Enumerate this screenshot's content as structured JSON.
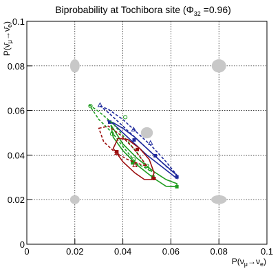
{
  "chart_data": {
    "type": "line",
    "title": {
      "main": "Biprobability at Tochibora site (",
      "phi": "Φ",
      "phi_sub": "32",
      "phi_value": " =0.96)"
    },
    "xlabel": {
      "base": "P(ν",
      "sub1": "μ",
      "arrow": "→ν",
      "sub2": "e",
      "close": ")"
    },
    "ylabel": {
      "base": "P(ν̄",
      "sub1": "μ",
      "arrow": "→ν̄",
      "sub2": "e",
      "close": ")"
    },
    "xlim": [
      0,
      0.1
    ],
    "ylim": [
      0,
      0.1
    ],
    "x_ticks": [
      "0",
      "0.02",
      "0.04",
      "0.06",
      "0.08",
      "0.1"
    ],
    "y_ticks": [
      "0",
      "0.02",
      "0.04",
      "0.06",
      "0.08",
      "0.1"
    ],
    "grid": true,
    "colors": {
      "blue": "#1f2a9c",
      "green": "#1f9c1f",
      "red": "#9c1010",
      "gray": "#c8c8c8"
    },
    "gray_markers": [
      {
        "x": 0.02,
        "y": 0.08,
        "rx": 0.002,
        "ry": 0.003
      },
      {
        "x": 0.08,
        "y": 0.08,
        "rx": 0.003,
        "ry": 0.003
      },
      {
        "x": 0.05,
        "y": 0.05,
        "rx": 0.0025,
        "ry": 0.0025
      },
      {
        "x": 0.02,
        "y": 0.02,
        "rx": 0.002,
        "ry": 0.002
      },
      {
        "x": 0.08,
        "y": 0.02,
        "rx": 0.0032,
        "ry": 0.002
      }
    ],
    "series": [
      {
        "color": "blue",
        "dash": false,
        "marker": "filled-square",
        "points": [
          [
            0.0335,
            0.0555
          ],
          [
            0.036,
            0.0545
          ],
          [
            0.04,
            0.052
          ],
          [
            0.045,
            0.048
          ],
          [
            0.05,
            0.043
          ],
          [
            0.056,
            0.037
          ],
          [
            0.0625,
            0.031
          ],
          [
            0.0625,
            0.0295
          ],
          [
            0.056,
            0.035
          ],
          [
            0.05,
            0.04
          ],
          [
            0.045,
            0.045
          ],
          [
            0.04,
            0.05
          ],
          [
            0.036,
            0.054
          ],
          [
            0.0335,
            0.0555
          ]
        ],
        "markers": [
          [
            0.0625,
            0.0302
          ],
          [
            0.0535,
            0.0397
          ],
          [
            0.0447,
            0.0468
          ],
          [
            0.0345,
            0.0548
          ]
        ]
      },
      {
        "color": "blue",
        "dash": true,
        "marker": "open-triangle",
        "points": [
          [
            0.0305,
            0.062
          ],
          [
            0.034,
            0.0605
          ],
          [
            0.04,
            0.056
          ],
          [
            0.046,
            0.05
          ],
          [
            0.052,
            0.044
          ],
          [
            0.058,
            0.037
          ],
          [
            0.0625,
            0.031
          ],
          [
            0.058,
            0.035
          ],
          [
            0.052,
            0.041
          ],
          [
            0.046,
            0.047
          ],
          [
            0.04,
            0.053
          ],
          [
            0.034,
            0.059
          ],
          [
            0.0305,
            0.062
          ]
        ],
        "markers": [
          [
            0.0305,
            0.0625
          ],
          [
            0.0445,
            0.0515
          ],
          [
            0.0515,
            0.0455
          ]
        ]
      },
      {
        "color": "green",
        "dash": false,
        "marker": "filled-square",
        "points": [
          [
            0.035,
            0.0535
          ],
          [
            0.036,
            0.048
          ],
          [
            0.04,
            0.042
          ],
          [
            0.046,
            0.0355
          ],
          [
            0.053,
            0.0295
          ],
          [
            0.058,
            0.026
          ],
          [
            0.0625,
            0.0258
          ],
          [
            0.0625,
            0.0272
          ],
          [
            0.058,
            0.029
          ],
          [
            0.053,
            0.0325
          ],
          [
            0.046,
            0.0385
          ],
          [
            0.04,
            0.045
          ],
          [
            0.0365,
            0.051
          ],
          [
            0.035,
            0.0535
          ]
        ],
        "markers": [
          [
            0.0625,
            0.0258
          ],
          [
            0.0525,
            0.0302
          ],
          [
            0.044,
            0.0365
          ]
        ]
      },
      {
        "color": "green",
        "dash": true,
        "marker": "open-circle",
        "points": [
          [
            0.026,
            0.0625
          ],
          [
            0.03,
            0.0595
          ],
          [
            0.036,
            0.054
          ],
          [
            0.041,
            0.0475
          ],
          [
            0.046,
            0.041
          ],
          [
            0.05,
            0.035
          ],
          [
            0.052,
            0.0325
          ],
          [
            0.049,
            0.0345
          ],
          [
            0.046,
            0.036
          ],
          [
            0.041,
            0.0425
          ],
          [
            0.036,
            0.0495
          ],
          [
            0.03,
            0.056
          ],
          [
            0.026,
            0.0625
          ]
        ],
        "markers": [
          [
            0.0265,
            0.062
          ],
          [
            0.0355,
            0.0495
          ],
          [
            0.041,
            0.057
          ],
          [
            0.0445,
            0.038
          ],
          [
            0.05,
            0.0352
          ]
        ]
      },
      {
        "color": "red",
        "dash": false,
        "marker": "filled-square",
        "points": [
          [
            0.036,
            0.043
          ],
          [
            0.038,
            0.0475
          ],
          [
            0.042,
            0.047
          ],
          [
            0.047,
            0.043
          ],
          [
            0.051,
            0.038
          ],
          [
            0.053,
            0.032
          ],
          [
            0.052,
            0.029
          ],
          [
            0.049,
            0.029
          ],
          [
            0.045,
            0.032
          ],
          [
            0.04,
            0.037
          ],
          [
            0.036,
            0.043
          ]
        ],
        "markers": [
          [
            0.053,
            0.0295
          ],
          [
            0.046,
            0.0425
          ],
          [
            0.0375,
            0.0415
          ]
        ]
      },
      {
        "color": "red",
        "dash": true,
        "marker": "open-triangle",
        "points": [
          [
            0.03,
            0.052
          ],
          [
            0.034,
            0.053
          ],
          [
            0.039,
            0.049
          ],
          [
            0.044,
            0.0435
          ],
          [
            0.048,
            0.038
          ],
          [
            0.05,
            0.035
          ],
          [
            0.047,
            0.036
          ],
          [
            0.042,
            0.038
          ],
          [
            0.037,
            0.041
          ],
          [
            0.032,
            0.046
          ],
          [
            0.03,
            0.052
          ]
        ],
        "markers": [
          [
            0.0375,
            0.041
          ],
          [
            0.045,
            0.0355
          ]
        ]
      }
    ]
  }
}
